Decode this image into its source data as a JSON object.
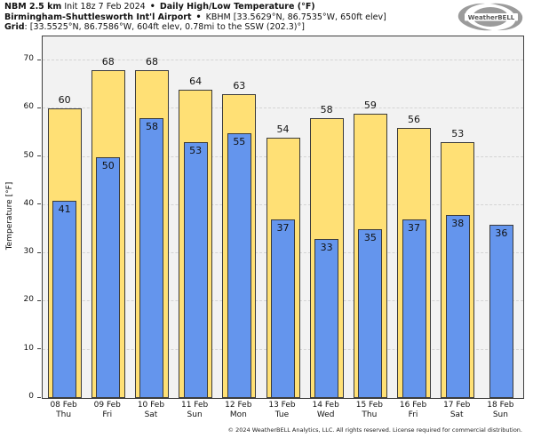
{
  "header": {
    "line1": {
      "model": "NBM 2.5 km",
      "init": "Init 18z 7 Feb 2024",
      "separator": "•",
      "product": "Daily High/Low Temperature (°F)"
    },
    "line2": {
      "station_name": "Birmingham-Shuttlesworth Int'l Airport",
      "separator": "•",
      "station_meta": "KBHM [33.5629°N, 86.7535°W, 650ft elev]"
    },
    "line3": {
      "label": "Grid",
      "value": ": [33.5525°N, 86.7586°W, 604ft elev, 0.78mi to the SSW (202.3)°]"
    }
  },
  "logo": {
    "brand": "WeatherBELL"
  },
  "footer": {
    "copyright": "© 2024 WeatherBELL Analytics, LLC. All rights reserved. License required for commercial distribution."
  },
  "chart_data": {
    "type": "bar",
    "title": "Daily High/Low Temperature (°F)",
    "xlabel": "",
    "ylabel": "Temperature [°F]",
    "ylim": [
      0,
      75
    ],
    "yticks": [
      0,
      10,
      20,
      30,
      40,
      50,
      60,
      70
    ],
    "grid": "horizontal-dashed",
    "legend": "none",
    "categories": [
      {
        "date": "08 Feb",
        "day": "Thu"
      },
      {
        "date": "09 Feb",
        "day": "Fri"
      },
      {
        "date": "10 Feb",
        "day": "Sat"
      },
      {
        "date": "11 Feb",
        "day": "Sun"
      },
      {
        "date": "12 Feb",
        "day": "Mon"
      },
      {
        "date": "13 Feb",
        "day": "Tue"
      },
      {
        "date": "14 Feb",
        "day": "Wed"
      },
      {
        "date": "15 Feb",
        "day": "Thu"
      },
      {
        "date": "16 Feb",
        "day": "Fri"
      },
      {
        "date": "17 Feb",
        "day": "Sat"
      },
      {
        "date": "18 Feb",
        "day": "Sun"
      }
    ],
    "series": [
      {
        "name": "High",
        "color": "#FFE075",
        "values": [
          60,
          68,
          68,
          64,
          63,
          54,
          58,
          59,
          56,
          53,
          null
        ]
      },
      {
        "name": "Low",
        "color": "#6495ED",
        "values": [
          41,
          50,
          58,
          53,
          55,
          37,
          33,
          35,
          37,
          38,
          36
        ]
      }
    ],
    "colors": {
      "plot_background": "#F2F2F2",
      "bar_border": "#3B3B3B",
      "gridline": "#D4D4D4",
      "frame": "#3F3F3F"
    }
  }
}
